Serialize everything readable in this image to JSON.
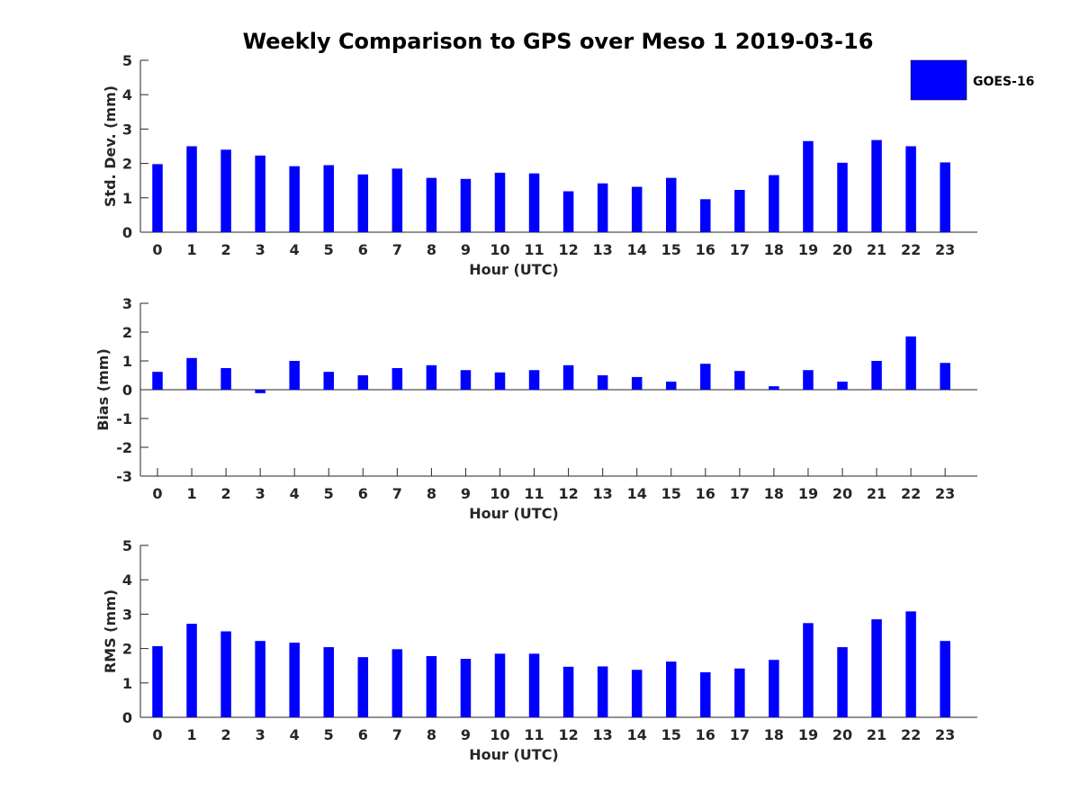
{
  "chart_data": {
    "type": "bar",
    "title": "Weekly Comparison to GPS over Meso 1 2019-03-16",
    "legend": {
      "entries": [
        "GOES-16"
      ],
      "placement": "top-right"
    },
    "bar_color": "#0000ff",
    "categories": [
      "0",
      "1",
      "2",
      "3",
      "4",
      "5",
      "6",
      "7",
      "8",
      "9",
      "10",
      "11",
      "12",
      "13",
      "14",
      "15",
      "16",
      "17",
      "18",
      "19",
      "20",
      "21",
      "22",
      "23"
    ],
    "panels": [
      {
        "id": "std",
        "ylabel": "Std. Dev. (mm)",
        "xlabel": "Hour (UTC)",
        "ylim": [
          0,
          5
        ],
        "yticks": [
          "0",
          "1",
          "2",
          "3",
          "4",
          "5"
        ],
        "series": [
          {
            "name": "GOES-16",
            "values": [
              1.98,
              2.5,
              2.4,
              2.23,
              1.92,
              1.95,
              1.68,
              1.85,
              1.58,
              1.55,
              1.73,
              1.71,
              1.19,
              1.42,
              1.32,
              1.58,
              0.96,
              1.23,
              1.66,
              2.65,
              2.02,
              2.68,
              2.5,
              2.03
            ]
          }
        ]
      },
      {
        "id": "bias",
        "ylabel": "Bias (mm)",
        "xlabel": "Hour (UTC)",
        "ylim": [
          -3,
          3
        ],
        "yticks": [
          "-3",
          "-2",
          "-1",
          "0",
          "1",
          "2",
          "3"
        ],
        "series": [
          {
            "name": "GOES-16",
            "values": [
              0.62,
              1.1,
              0.75,
              -0.12,
              1.0,
              0.62,
              0.5,
              0.75,
              0.85,
              0.68,
              0.6,
              0.68,
              0.85,
              0.5,
              0.44,
              0.28,
              0.9,
              0.65,
              0.12,
              0.68,
              0.28,
              1.0,
              1.85,
              0.93
            ]
          }
        ]
      },
      {
        "id": "rms",
        "ylabel": "RMS (mm)",
        "xlabel": "Hour (UTC)",
        "ylim": [
          0,
          5
        ],
        "yticks": [
          "0",
          "1",
          "2",
          "3",
          "4",
          "5"
        ],
        "series": [
          {
            "name": "GOES-16",
            "values": [
              2.07,
              2.72,
              2.5,
              2.22,
              2.17,
              2.04,
              1.75,
              1.98,
              1.78,
              1.7,
              1.85,
              1.85,
              1.47,
              1.48,
              1.38,
              1.62,
              1.31,
              1.42,
              1.67,
              2.74,
              2.04,
              2.85,
              3.08,
              2.22
            ]
          }
        ]
      }
    ]
  }
}
